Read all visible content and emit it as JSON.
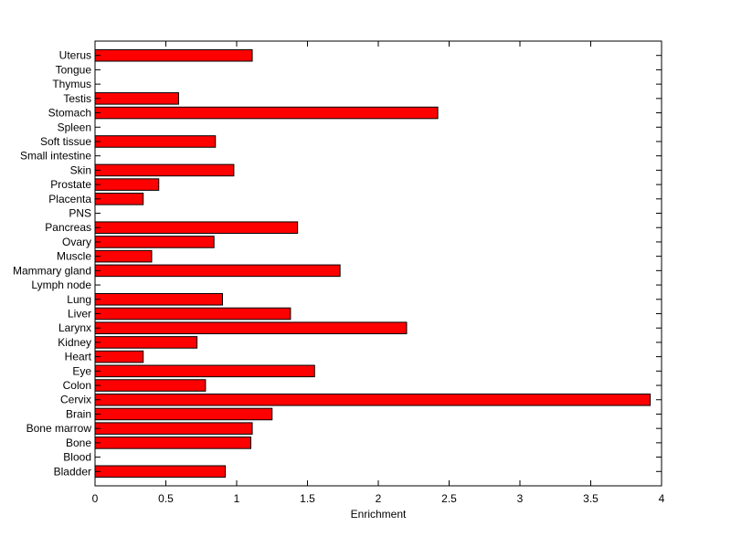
{
  "chart_data": {
    "type": "bar",
    "orientation": "horizontal",
    "xlabel": "Enrichment",
    "ylabel": "",
    "xlim": [
      0,
      4
    ],
    "xticks": [
      "0",
      "0.5",
      "1",
      "1.5",
      "2",
      "2.5",
      "3",
      "3.5",
      "4"
    ],
    "grid": false,
    "bar_color": "#ff0000",
    "categories": [
      "Bladder",
      "Blood",
      "Bone",
      "Bone marrow",
      "Brain",
      "Cervix",
      "Colon",
      "Eye",
      "Heart",
      "Kidney",
      "Larynx",
      "Liver",
      "Lung",
      "Lymph node",
      "Mammary gland",
      "Muscle",
      "Ovary",
      "Pancreas",
      "PNS",
      "Placenta",
      "Prostate",
      "Skin",
      "Small intestine",
      "Soft tissue",
      "Spleen",
      "Stomach",
      "Testis",
      "Thymus",
      "Tongue",
      "Uterus"
    ],
    "values": [
      0.92,
      0,
      1.1,
      1.11,
      1.25,
      3.92,
      0.78,
      1.55,
      0.34,
      0.72,
      2.2,
      1.38,
      0.9,
      0,
      1.73,
      0.4,
      0.84,
      1.43,
      0,
      0.34,
      0.45,
      0.98,
      0,
      0.85,
      0,
      2.42,
      0.59,
      0,
      0,
      1.11
    ]
  }
}
